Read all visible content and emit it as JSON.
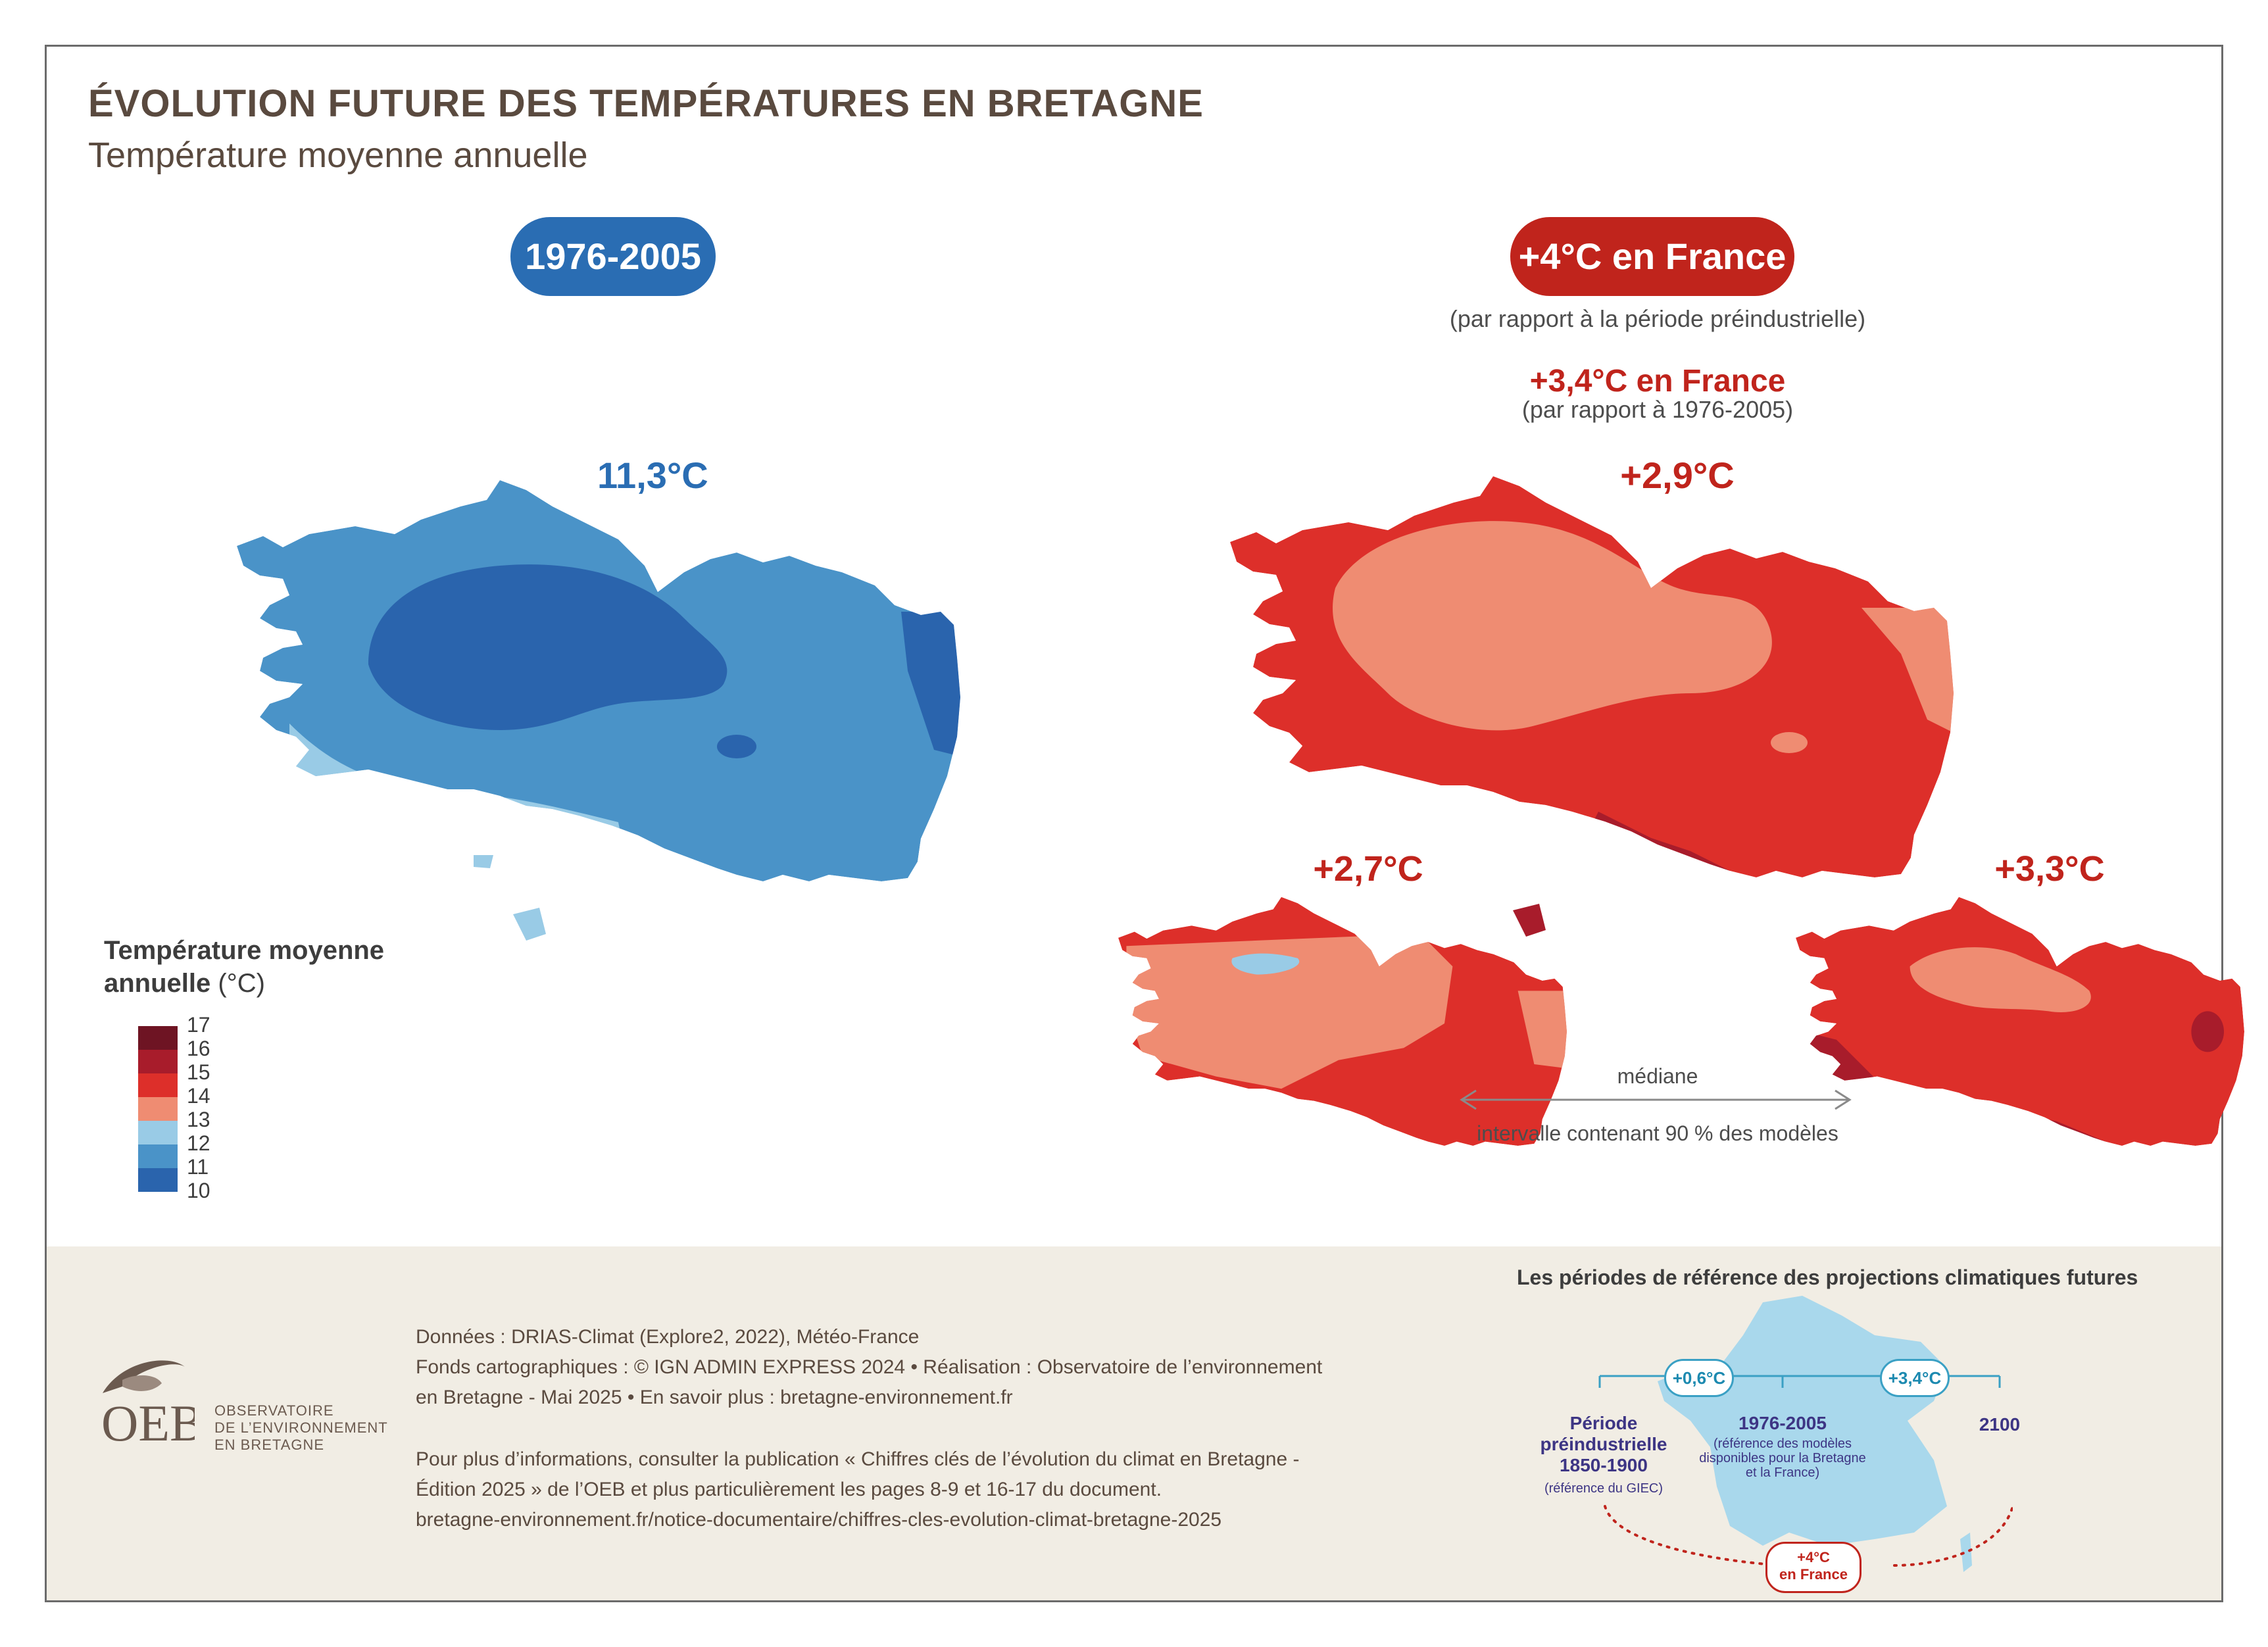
{
  "header": {
    "title": "ÉVOLUTION FUTURE DES TEMPÉRATURES EN BRETAGNE",
    "subtitle": "Température moyenne annuelle"
  },
  "left_panel": {
    "period_label": "1976-2005",
    "value": "11,3°C"
  },
  "right_panel": {
    "scenario_label": "+4°C en France",
    "scenario_note": "(par rapport à la période préindustrielle)",
    "equiv_label": "+3,4°C en France",
    "equiv_note": "(par rapport à 1976-2005)",
    "median_value": "+2,9°C",
    "low_value": "+2,7°C",
    "high_value": "+3,3°C",
    "median_caption": "médiane",
    "interval_caption": "intervalle contenant 90 % des modèles"
  },
  "legend": {
    "title": "Température moyenne",
    "title_line2": "annuelle",
    "unit": "(°C)",
    "ticks": [
      "17",
      "16",
      "15",
      "14",
      "13",
      "12",
      "11",
      "10"
    ],
    "colors": [
      "#6e1423",
      "#a81c2b",
      "#dd2f2a",
      "#ef8c72",
      "#99cbe6",
      "#4a93c8",
      "#2a64ad"
    ]
  },
  "footer": {
    "data_line": "Données : DRIAS-Climat (Explore2, 2022), Météo-France",
    "fonds_line": "Fonds cartographiques : © IGN ADMIN EXPRESS 2024 • Réalisation : Observatoire de l’environnement",
    "fonds_line2": "en Bretagne - Mai 2025   • En savoir plus : bretagne-environnement.fr",
    "info_line1": "Pour plus d’informations, consulter la publication « Chiffres clés de l’évolution du climat en Bretagne -",
    "info_line2": "Édition 2025 » de l’OEB et plus particulièrement les pages 8-9 et 16-17 du document.",
    "info_line3": "bretagne-environnement.fr/notice-documentaire/chiffres-cles-evolution-climat-bretagne-2025",
    "logo_letters": "OEB",
    "logo_line1": "OBSERVATOIRE",
    "logo_line2": "DE L’ENVIRONNEMENT",
    "logo_line3": "EN BRETAGNE"
  },
  "reference_periods": {
    "title": "Les périodes de référence des projections climatiques futures",
    "pre_industrial_line1": "Période",
    "pre_industrial_line2": "préindustrielle",
    "pre_industrial_years": "1850-1900",
    "pre_industrial_note": "(référence du GIEC)",
    "base_period": "1976-2005",
    "base_note1": "(référence des modèles",
    "base_note2": "disponibles pour la Bretagne",
    "base_note3": "et la France)",
    "end_year": "2100",
    "delta1": "+0,6°C",
    "delta2": "+3,4°C",
    "total_line1": "+4°C",
    "total_line2": "en France"
  }
}
